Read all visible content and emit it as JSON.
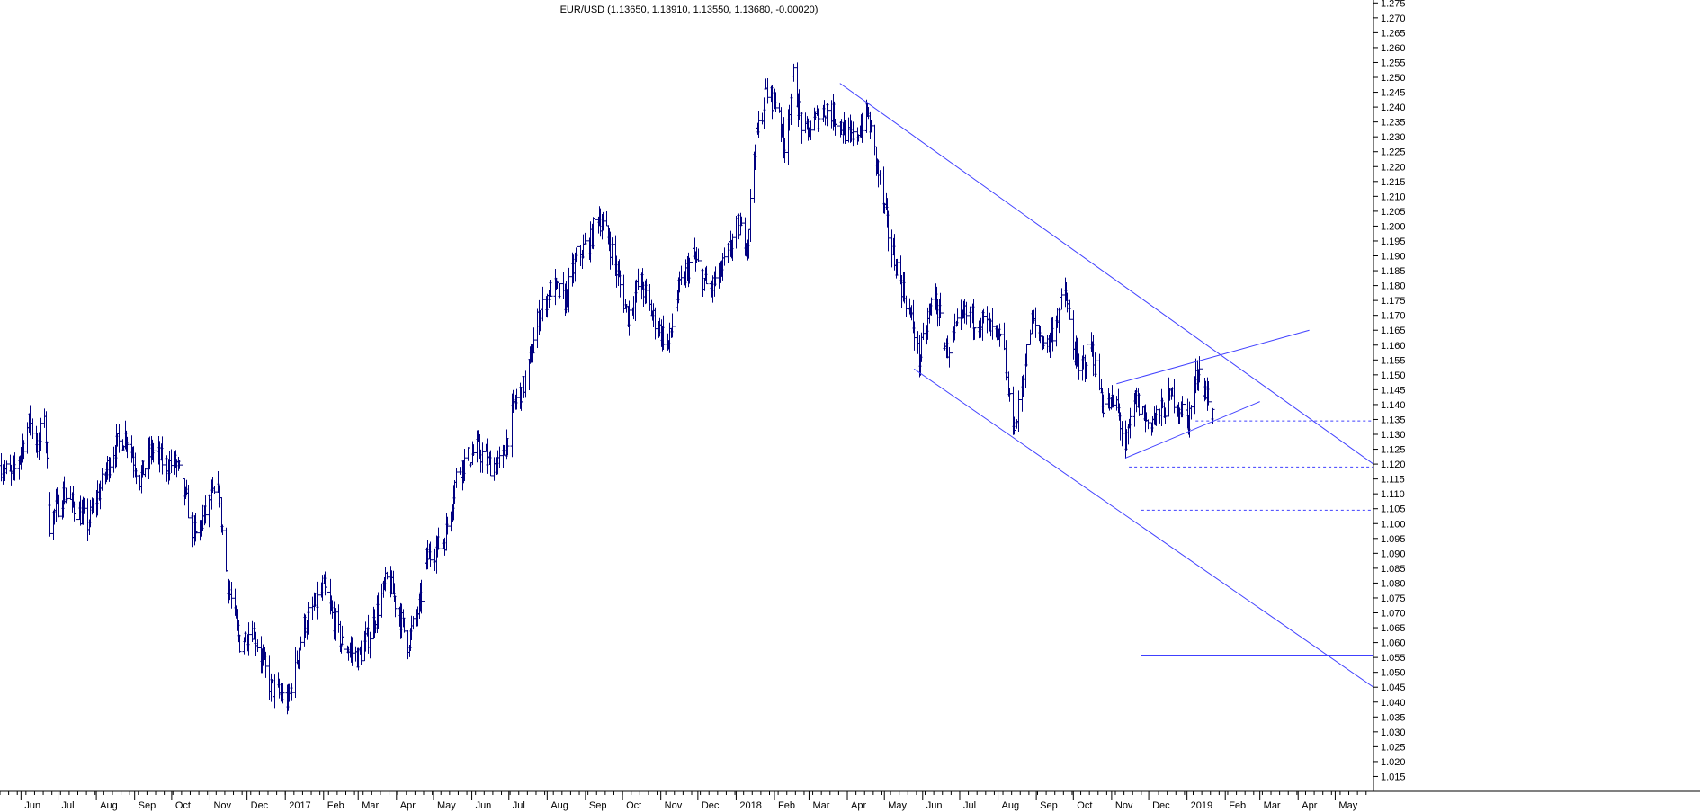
{
  "chart_data": {
    "type": "ohlc",
    "title": "EUR/USD (1.13650, 1.13910, 1.13550, 1.13680, -0.00020)",
    "ylim": [
      1.01,
      1.276
    ],
    "y_ticks": [
      1.015,
      1.02,
      1.025,
      1.03,
      1.035,
      1.04,
      1.045,
      1.05,
      1.055,
      1.06,
      1.065,
      1.07,
      1.075,
      1.08,
      1.085,
      1.09,
      1.095,
      1.1,
      1.105,
      1.11,
      1.115,
      1.12,
      1.125,
      1.13,
      1.135,
      1.14,
      1.145,
      1.15,
      1.155,
      1.16,
      1.165,
      1.17,
      1.175,
      1.18,
      1.185,
      1.19,
      1.195,
      1.2,
      1.205,
      1.21,
      1.215,
      1.22,
      1.225,
      1.23,
      1.235,
      1.24,
      1.245,
      1.25,
      1.255,
      1.26,
      1.265,
      1.27,
      1.275
    ],
    "x_domain": [
      "2016-05-15",
      "2019-06-01"
    ],
    "x_ticks": [
      {
        "date": "2016-06-01",
        "label": "Jun"
      },
      {
        "date": "2016-07-01",
        "label": "Jul"
      },
      {
        "date": "2016-08-01",
        "label": "Aug"
      },
      {
        "date": "2016-09-01",
        "label": "Sep"
      },
      {
        "date": "2016-10-01",
        "label": "Oct"
      },
      {
        "date": "2016-11-01",
        "label": "Nov"
      },
      {
        "date": "2016-12-01",
        "label": "Dec"
      },
      {
        "date": "2017-01-01",
        "label": "2017"
      },
      {
        "date": "2017-02-01",
        "label": "Feb"
      },
      {
        "date": "2017-03-01",
        "label": "Mar"
      },
      {
        "date": "2017-04-01",
        "label": "Apr"
      },
      {
        "date": "2017-05-01",
        "label": "May"
      },
      {
        "date": "2017-06-01",
        "label": "Jun"
      },
      {
        "date": "2017-07-01",
        "label": "Jul"
      },
      {
        "date": "2017-08-01",
        "label": "Aug"
      },
      {
        "date": "2017-09-01",
        "label": "Sep"
      },
      {
        "date": "2017-10-01",
        "label": "Oct"
      },
      {
        "date": "2017-11-01",
        "label": "Nov"
      },
      {
        "date": "2017-12-01",
        "label": "Dec"
      },
      {
        "date": "2018-01-01",
        "label": "2018"
      },
      {
        "date": "2018-02-01",
        "label": "Feb"
      },
      {
        "date": "2018-03-01",
        "label": "Mar"
      },
      {
        "date": "2018-04-01",
        "label": "Apr"
      },
      {
        "date": "2018-05-01",
        "label": "May"
      },
      {
        "date": "2018-06-01",
        "label": "Jun"
      },
      {
        "date": "2018-07-01",
        "label": "Jul"
      },
      {
        "date": "2018-08-01",
        "label": "Aug"
      },
      {
        "date": "2018-09-01",
        "label": "Sep"
      },
      {
        "date": "2018-10-01",
        "label": "Oct"
      },
      {
        "date": "2018-11-01",
        "label": "Nov"
      },
      {
        "date": "2018-12-01",
        "label": "Dec"
      },
      {
        "date": "2019-01-01",
        "label": "2019"
      },
      {
        "date": "2019-02-01",
        "label": "Feb"
      },
      {
        "date": "2019-03-01",
        "label": "Mar"
      },
      {
        "date": "2019-04-01",
        "label": "Apr"
      },
      {
        "date": "2019-05-01",
        "label": "May"
      }
    ],
    "price_path": [
      [
        "2016-05-15",
        1.12
      ],
      [
        "2016-05-25",
        1.115
      ],
      [
        "2016-06-08",
        1.135
      ],
      [
        "2016-06-15",
        1.125
      ],
      [
        "2016-06-20",
        1.138
      ],
      [
        "2016-06-24",
        1.1
      ],
      [
        "2016-07-05",
        1.11
      ],
      [
        "2016-07-25",
        1.1
      ],
      [
        "2016-08-15",
        1.125
      ],
      [
        "2016-08-25",
        1.13
      ],
      [
        "2016-09-05",
        1.115
      ],
      [
        "2016-09-15",
        1.125
      ],
      [
        "2016-09-25",
        1.12
      ],
      [
        "2016-10-05",
        1.12
      ],
      [
        "2016-10-20",
        1.095
      ],
      [
        "2016-11-01",
        1.108
      ],
      [
        "2016-11-08",
        1.11
      ],
      [
        "2016-11-15",
        1.08
      ],
      [
        "2016-11-25",
        1.06
      ],
      [
        "2016-12-05",
        1.065
      ],
      [
        "2016-12-20",
        1.045
      ],
      [
        "2017-01-03",
        1.04
      ],
      [
        "2017-01-15",
        1.065
      ],
      [
        "2017-02-01",
        1.078
      ],
      [
        "2017-02-15",
        1.06
      ],
      [
        "2017-03-01",
        1.055
      ],
      [
        "2017-03-10",
        1.063
      ],
      [
        "2017-03-25",
        1.082
      ],
      [
        "2017-04-10",
        1.06
      ],
      [
        "2017-04-20",
        1.073
      ],
      [
        "2017-04-25",
        1.088
      ],
      [
        "2017-05-10",
        1.095
      ],
      [
        "2017-05-20",
        1.118
      ],
      [
        "2017-06-05",
        1.125
      ],
      [
        "2017-06-15",
        1.12
      ],
      [
        "2017-06-25",
        1.12
      ],
      [
        "2017-07-05",
        1.14
      ],
      [
        "2017-07-15",
        1.148
      ],
      [
        "2017-07-25",
        1.17
      ],
      [
        "2017-08-05",
        1.18
      ],
      [
        "2017-08-15",
        1.175
      ],
      [
        "2017-08-25",
        1.19
      ],
      [
        "2017-09-05",
        1.195
      ],
      [
        "2017-09-10",
        1.205
      ],
      [
        "2017-09-20",
        1.195
      ],
      [
        "2017-10-05",
        1.17
      ],
      [
        "2017-10-15",
        1.182
      ],
      [
        "2017-10-25",
        1.17
      ],
      [
        "2017-11-07",
        1.16
      ],
      [
        "2017-11-15",
        1.178
      ],
      [
        "2017-11-27",
        1.19
      ],
      [
        "2017-12-10",
        1.178
      ],
      [
        "2017-12-20",
        1.185
      ],
      [
        "2018-01-02",
        1.2
      ],
      [
        "2018-01-10",
        1.195
      ],
      [
        "2018-01-15",
        1.225
      ],
      [
        "2018-01-25",
        1.245
      ],
      [
        "2018-02-05",
        1.24
      ],
      [
        "2018-02-08",
        1.225
      ],
      [
        "2018-02-16",
        1.25
      ],
      [
        "2018-02-25",
        1.23
      ],
      [
        "2018-03-05",
        1.235
      ],
      [
        "2018-03-15",
        1.24
      ],
      [
        "2018-03-25",
        1.235
      ],
      [
        "2018-04-05",
        1.228
      ],
      [
        "2018-04-17",
        1.238
      ],
      [
        "2018-04-25",
        1.22
      ],
      [
        "2018-05-05",
        1.195
      ],
      [
        "2018-05-15",
        1.18
      ],
      [
        "2018-05-25",
        1.165
      ],
      [
        "2018-05-29",
        1.155
      ],
      [
        "2018-06-05",
        1.168
      ],
      [
        "2018-06-10",
        1.178
      ],
      [
        "2018-06-20",
        1.158
      ],
      [
        "2018-07-05",
        1.17
      ],
      [
        "2018-07-20",
        1.168
      ],
      [
        "2018-08-05",
        1.16
      ],
      [
        "2018-08-10",
        1.14
      ],
      [
        "2018-08-15",
        1.133
      ],
      [
        "2018-08-28",
        1.168
      ],
      [
        "2018-09-10",
        1.16
      ],
      [
        "2018-09-24",
        1.178
      ],
      [
        "2018-10-05",
        1.15
      ],
      [
        "2018-10-15",
        1.16
      ],
      [
        "2018-10-25",
        1.14
      ],
      [
        "2018-11-05",
        1.14
      ],
      [
        "2018-11-12",
        1.125
      ],
      [
        "2018-11-20",
        1.142
      ],
      [
        "2018-11-30",
        1.134
      ],
      [
        "2018-12-10",
        1.137
      ],
      [
        "2018-12-20",
        1.143
      ],
      [
        "2019-01-02",
        1.135
      ],
      [
        "2019-01-10",
        1.153
      ],
      [
        "2019-01-15",
        1.145
      ],
      [
        "2019-01-22",
        1.1368
      ]
    ],
    "trendlines": [
      {
        "from": [
          "2018-03-26",
          1.248
        ],
        "to": [
          "2019-06-01",
          1.12
        ]
      },
      {
        "from": [
          "2018-05-25",
          1.152
        ],
        "to": [
          "2019-06-01",
          1.045
        ]
      },
      {
        "from": [
          "2018-11-05",
          1.147
        ],
        "to": [
          "2019-04-10",
          1.165
        ]
      },
      {
        "from": [
          "2018-11-12",
          1.122
        ],
        "to": [
          "2019-03-01",
          1.141
        ]
      }
    ],
    "levels": [
      {
        "value": 1.1345,
        "from": "2019-01-08",
        "style": "dashed"
      },
      {
        "value": 1.119,
        "from": "2018-11-15",
        "style": "dashed"
      },
      {
        "value": 1.1045,
        "from": "2018-11-25",
        "style": "dashed"
      },
      {
        "value": 1.0558,
        "from": "2018-11-25",
        "style": "solid"
      }
    ],
    "colors": {
      "bars": "#000080",
      "lines": "#4040ff",
      "axis": "#000000"
    }
  }
}
